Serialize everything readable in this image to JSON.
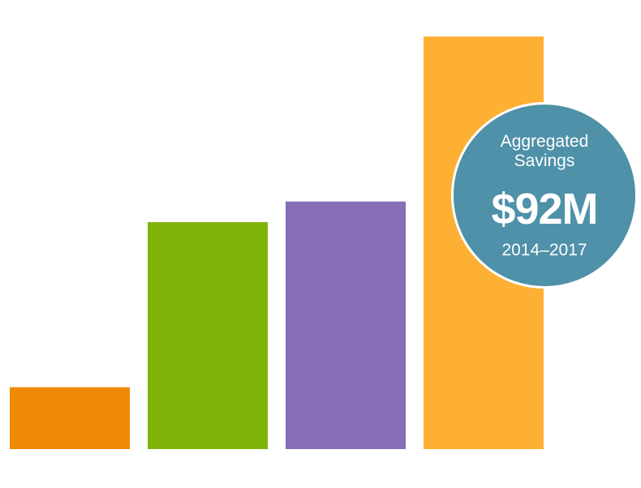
{
  "chart_data": {
    "type": "bar",
    "categories": [
      "",
      "",
      "",
      ""
    ],
    "values": [
      15,
      55,
      60,
      100
    ],
    "colors": [
      "#ef8a05",
      "#7fb30a",
      "#876cb7",
      "#feb035"
    ],
    "ylim": [
      0,
      100
    ],
    "grid": false,
    "legend": "none",
    "annotation": {
      "label_line1": "Aggregated",
      "label_line2": "Savings",
      "value": "$92M",
      "period": "2014–2017",
      "color": "#4e91a8"
    }
  }
}
